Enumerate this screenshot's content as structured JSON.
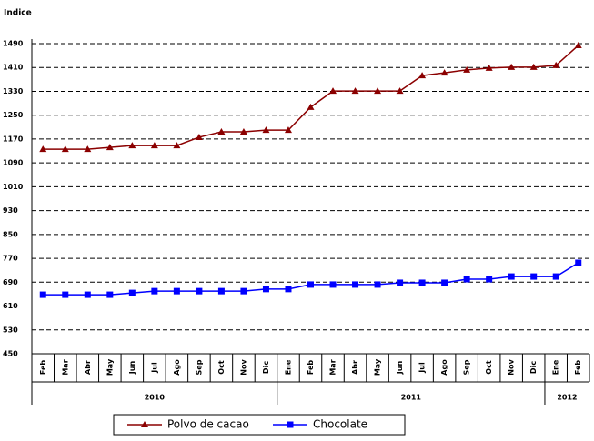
{
  "chart_data": {
    "type": "line",
    "y_label": "Indice",
    "categories": [
      "Feb",
      "Mar",
      "Abr",
      "May",
      "Jun",
      "Jul",
      "Ago",
      "Sep",
      "Oct",
      "Nov",
      "Dic",
      "Ene",
      "Feb",
      "Mar",
      "Abr",
      "May",
      "Jun",
      "Jul",
      "Ago",
      "Sep",
      "Oct",
      "Nov",
      "Dic",
      "Ene",
      "Feb"
    ],
    "year_groups": [
      {
        "label": "2010",
        "count": 11
      },
      {
        "label": "2011",
        "count": 12
      },
      {
        "label": "2012",
        "count": 2
      }
    ],
    "series": [
      {
        "name": "Polvo de cacao",
        "color": "#8b0000",
        "marker": "triangle",
        "values": [
          1136,
          1136,
          1136,
          1142,
          1148,
          1148,
          1148,
          1176,
          1194,
          1194,
          1200,
          1200,
          1277,
          1331,
          1331,
          1331,
          1331,
          1383,
          1392,
          1402,
          1408,
          1411,
          1411,
          1417,
          1484
        ]
      },
      {
        "name": "Chocolate",
        "color": "#0000ff",
        "marker": "square",
        "values": [
          648,
          648,
          648,
          648,
          654,
          660,
          660,
          660,
          660,
          660,
          667,
          667,
          682,
          682,
          682,
          682,
          688,
          688,
          688,
          700,
          700,
          709,
          709,
          709,
          755
        ]
      }
    ],
    "ylim": [
      450,
      1490
    ],
    "yticks": [
      450,
      530,
      610,
      690,
      770,
      850,
      930,
      1010,
      1090,
      1170,
      1250,
      1330,
      1410,
      1490
    ],
    "grid": true,
    "legend": "bottom"
  }
}
